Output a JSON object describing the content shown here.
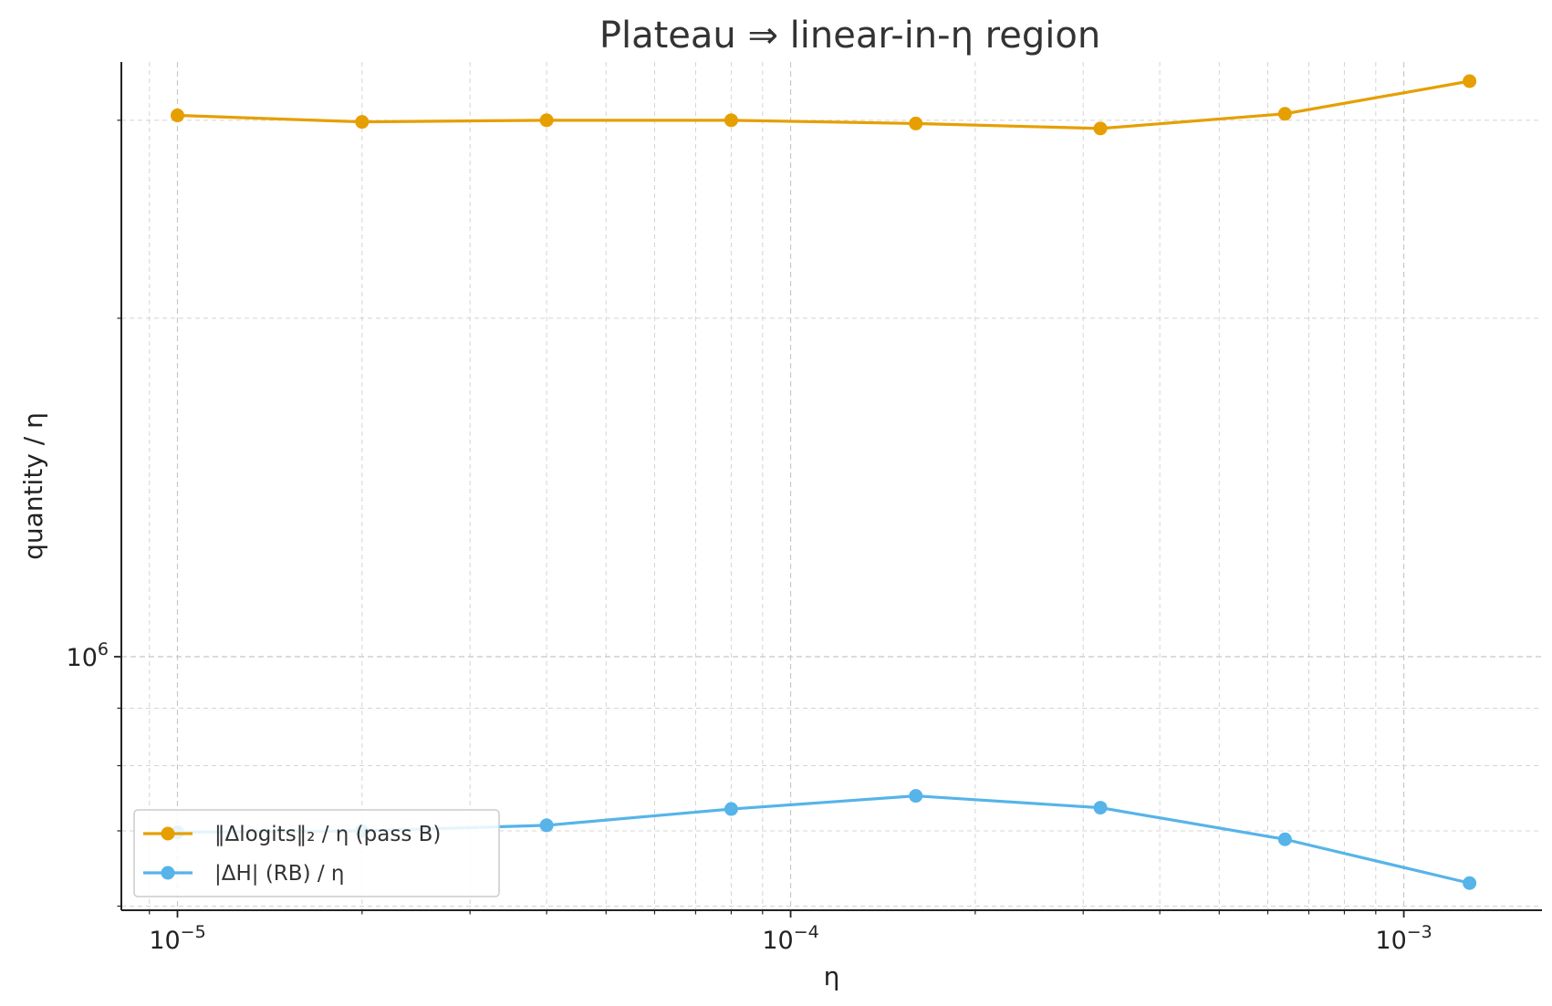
{
  "chart_data": {
    "type": "line",
    "title": "Plateau ⇒ linear-in-η region",
    "xlabel": "η",
    "ylabel": "quantity / η",
    "xscale": "log",
    "yscale": "log",
    "xlim": [
      8.1e-06,
      0.00168
    ],
    "ylim": [
      595000,
      3380000
    ],
    "grid": true,
    "legend_position": "lower-left",
    "x": [
      1e-05,
      2e-05,
      4e-05,
      8e-05,
      0.00016,
      0.00032,
      0.00064,
      0.00128
    ],
    "x_tick_labels": [
      {
        "value": 1e-05,
        "base": "10",
        "exp": "−5"
      },
      {
        "value": 0.0001,
        "base": "10",
        "exp": "−4"
      },
      {
        "value": 0.001,
        "base": "10",
        "exp": "−3"
      }
    ],
    "y_tick_labels": [
      {
        "value": 1000000,
        "base": "10",
        "exp": "6"
      }
    ],
    "series": [
      {
        "name": "‖Δlogits‖₂ / η (pass B)",
        "color": "#E69F00",
        "values": [
          3030000,
          2990000,
          3000000,
          3000000,
          2980000,
          2950000,
          3040000,
          3250000
        ]
      },
      {
        "name": "|ΔH| (RB) / η",
        "color": "#56B4E9",
        "values": [
          698000,
          700000,
          708000,
          732000,
          752000,
          734000,
          688000,
          629000
        ]
      }
    ]
  }
}
